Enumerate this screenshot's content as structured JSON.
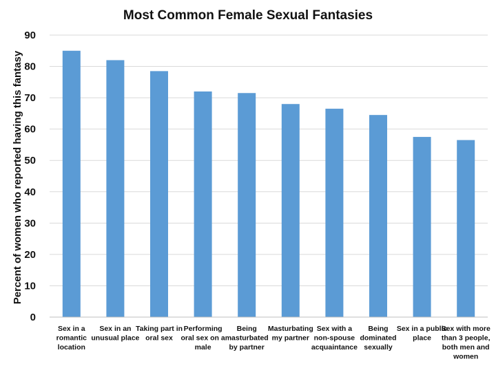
{
  "chart_data": {
    "type": "bar",
    "title": "Most Common Female Sexual Fantasies",
    "xlabel": "",
    "ylabel": "Percent of women who reported having this fantasy",
    "ylim": [
      0,
      90
    ],
    "yticks": [
      0,
      10,
      20,
      30,
      40,
      50,
      60,
      70,
      80,
      90
    ],
    "grid": true,
    "legend": "none",
    "bar_color": "#5b9bd5",
    "categories": [
      [
        "Sex in a",
        "romantic",
        "location"
      ],
      [
        "Sex in an",
        "unusual place"
      ],
      [
        "Taking part in",
        "oral sex"
      ],
      [
        "Performing",
        "oral sex on a",
        "male"
      ],
      [
        "Being",
        "masturbated",
        "by partner"
      ],
      [
        "Masturbating",
        "my partner"
      ],
      [
        "Sex with a",
        "non-spouse",
        "acquaintance"
      ],
      [
        "Being",
        "dominated",
        "sexually"
      ],
      [
        "Sex in a public",
        "place"
      ],
      [
        "Sex with more",
        "than 3 people,",
        "both men and",
        "women"
      ]
    ],
    "values": [
      85,
      82,
      78.5,
      72,
      71.5,
      68,
      66.5,
      64.5,
      57.5,
      56.5
    ]
  }
}
